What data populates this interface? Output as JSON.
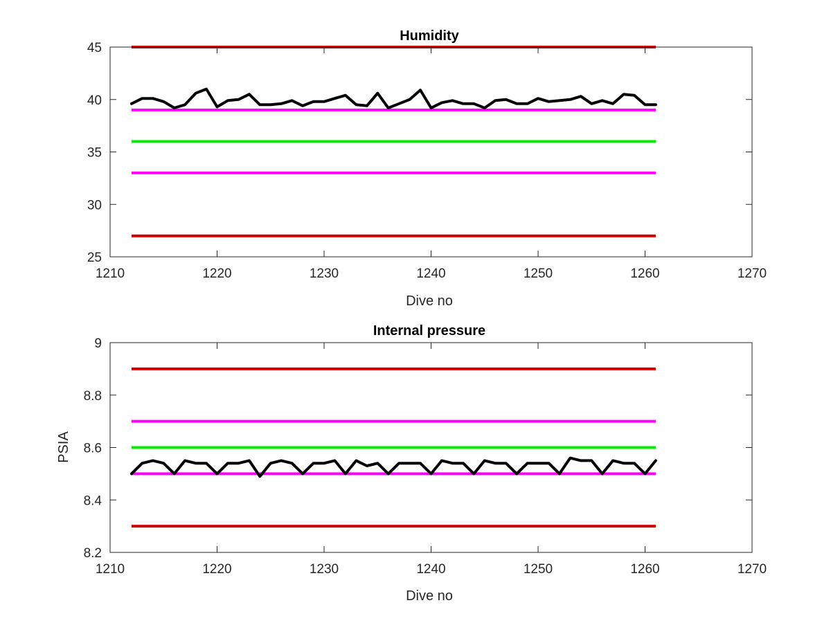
{
  "figure": {
    "background": "#ffffff"
  },
  "chart_data": [
    {
      "type": "line",
      "title": "Humidity",
      "xlabel": "Dive no",
      "ylabel": "",
      "xlim": [
        1210,
        1270
      ],
      "ylim": [
        25,
        45
      ],
      "xticks": [
        1210,
        1220,
        1230,
        1240,
        1250,
        1260,
        1270
      ],
      "yticks": [
        25,
        30,
        35,
        40,
        45
      ],
      "grid": false,
      "legend": "none",
      "reference_lines": [
        {
          "y": 45,
          "x": [
            1212,
            1261
          ],
          "color": "#d40000"
        },
        {
          "y": 39,
          "x": [
            1212,
            1261
          ],
          "color": "#ff00ff"
        },
        {
          "y": 36,
          "x": [
            1212,
            1261
          ],
          "color": "#00ee00"
        },
        {
          "y": 33,
          "x": [
            1212,
            1261
          ],
          "color": "#ff00ff"
        },
        {
          "y": 27,
          "x": [
            1212,
            1261
          ],
          "color": "#d40000"
        }
      ],
      "series": [
        {
          "color": "#000000",
          "x": [
            1212,
            1213,
            1214,
            1215,
            1216,
            1217,
            1218,
            1219,
            1220,
            1221,
            1222,
            1223,
            1224,
            1225,
            1226,
            1227,
            1228,
            1229,
            1230,
            1231,
            1232,
            1233,
            1234,
            1235,
            1236,
            1237,
            1238,
            1239,
            1240,
            1241,
            1242,
            1243,
            1244,
            1245,
            1246,
            1247,
            1248,
            1249,
            1250,
            1251,
            1252,
            1253,
            1254,
            1255,
            1256,
            1257,
            1258,
            1259,
            1260,
            1261
          ],
          "values": [
            39.6,
            40.1,
            40.1,
            39.8,
            39.2,
            39.5,
            40.6,
            41.0,
            39.3,
            39.9,
            40.0,
            40.5,
            39.5,
            39.5,
            39.6,
            39.9,
            39.4,
            39.8,
            39.8,
            40.1,
            40.4,
            39.5,
            39.4,
            40.6,
            39.2,
            39.6,
            40.0,
            40.9,
            39.2,
            39.7,
            39.9,
            39.6,
            39.6,
            39.2,
            39.9,
            40.0,
            39.6,
            39.6,
            40.1,
            39.8,
            39.9,
            40.0,
            40.3,
            39.6,
            39.9,
            39.6,
            40.5,
            40.4,
            39.5,
            39.5
          ]
        }
      ]
    },
    {
      "type": "line",
      "title": "Internal pressure",
      "xlabel": "Dive no",
      "ylabel": "PSIA",
      "xlim": [
        1210,
        1270
      ],
      "ylim": [
        8.2,
        9.0
      ],
      "xticks": [
        1210,
        1220,
        1230,
        1240,
        1250,
        1260,
        1270
      ],
      "yticks": [
        8.2,
        8.4,
        8.6,
        8.8,
        9
      ],
      "grid": false,
      "legend": "none",
      "reference_lines": [
        {
          "y": 8.9,
          "x": [
            1212,
            1261
          ],
          "color": "#d40000"
        },
        {
          "y": 8.7,
          "x": [
            1212,
            1261
          ],
          "color": "#ff00ff"
        },
        {
          "y": 8.6,
          "x": [
            1212,
            1261
          ],
          "color": "#00ee00"
        },
        {
          "y": 8.5,
          "x": [
            1212,
            1261
          ],
          "color": "#ff00ff"
        },
        {
          "y": 8.3,
          "x": [
            1212,
            1261
          ],
          "color": "#d40000"
        }
      ],
      "series": [
        {
          "color": "#000000",
          "x": [
            1212,
            1213,
            1214,
            1215,
            1216,
            1217,
            1218,
            1219,
            1220,
            1221,
            1222,
            1223,
            1224,
            1225,
            1226,
            1227,
            1228,
            1229,
            1230,
            1231,
            1232,
            1233,
            1234,
            1235,
            1236,
            1237,
            1238,
            1239,
            1240,
            1241,
            1242,
            1243,
            1244,
            1245,
            1246,
            1247,
            1248,
            1249,
            1250,
            1251,
            1252,
            1253,
            1254,
            1255,
            1256,
            1257,
            1258,
            1259,
            1260,
            1261
          ],
          "values": [
            8.5,
            8.54,
            8.55,
            8.54,
            8.5,
            8.55,
            8.54,
            8.54,
            8.5,
            8.54,
            8.54,
            8.55,
            8.49,
            8.54,
            8.55,
            8.54,
            8.5,
            8.54,
            8.54,
            8.55,
            8.5,
            8.55,
            8.53,
            8.54,
            8.5,
            8.54,
            8.54,
            8.54,
            8.5,
            8.55,
            8.54,
            8.54,
            8.5,
            8.55,
            8.54,
            8.54,
            8.5,
            8.54,
            8.54,
            8.54,
            8.5,
            8.56,
            8.55,
            8.55,
            8.5,
            8.55,
            8.54,
            8.54,
            8.5,
            8.55
          ]
        }
      ]
    }
  ]
}
